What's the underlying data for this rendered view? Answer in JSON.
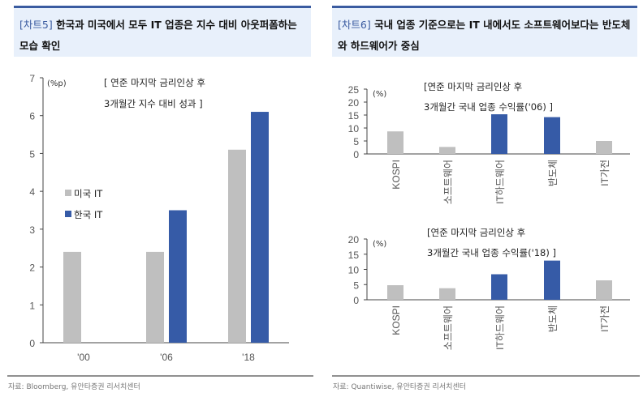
{
  "colors": {
    "gray": "#bfbfbf",
    "blue": "#365ba7",
    "header_bg": "#e8f0fb",
    "header_border": "#3a5ba0"
  },
  "left": {
    "tag": "[차트5]",
    "title": "한국과 미국에서 모두 IT 업종은 지수 대비 아웃퍼폼하는 모습 확인",
    "source": "자료: Bloomberg, 유안타증권 리서치센터"
  },
  "right": {
    "tag": "[차트6]",
    "title": "국내 업종 기준으로는 IT 내에서도 소프트웨어보다는 반도체와 하드웨어가 중심",
    "source": "자료: Quantiwise, 유안타증권 리서치센터"
  },
  "chart_data": [
    {
      "type": "bar",
      "unit": "(%p)",
      "annotation": [
        "[ 연준 마지막 금리인상 후",
        "3개월간 지수 대비 성과 ]"
      ],
      "categories": [
        "'00",
        "'06",
        "'18"
      ],
      "ylim": [
        0,
        7
      ],
      "yticks": [
        "0",
        "1",
        "2",
        "3",
        "4",
        "5",
        "6",
        "7"
      ],
      "legend_position": "left-middle",
      "series": [
        {
          "name": "미국 IT",
          "color": "#bfbfbf",
          "values": [
            2.4,
            2.4,
            5.1
          ]
        },
        {
          "name": "한국 IT",
          "color": "#365ba7",
          "values": [
            null,
            3.5,
            6.1
          ]
        }
      ]
    },
    {
      "type": "bar",
      "unit": "(%)",
      "annotation": [
        "[연준 마지막 금리인상 후",
        "3개월간 국내 업종 수익률('06) ]"
      ],
      "categories": [
        "KOSPI",
        "소프트웨어",
        "IT하드웨어",
        "반도체",
        "IT가전"
      ],
      "ylim": [
        0,
        25
      ],
      "yticks": [
        "0",
        "5",
        "10",
        "15",
        "20",
        "25"
      ],
      "values": [
        8.7,
        2.7,
        15.3,
        14.2,
        5.0
      ],
      "colors": [
        "#bfbfbf",
        "#bfbfbf",
        "#365ba7",
        "#365ba7",
        "#bfbfbf"
      ]
    },
    {
      "type": "bar",
      "unit": "(%)",
      "annotation": [
        "[연준 마지막 금리인상 후",
        "3개월간 국내 업종 수익률('18) ]"
      ],
      "categories": [
        "KOSPI",
        "소프트웨어",
        "IT하드웨어",
        "반도체",
        "IT가전"
      ],
      "ylim": [
        0,
        20
      ],
      "yticks": [
        "0",
        "5",
        "10",
        "15",
        "20"
      ],
      "values": [
        4.8,
        3.8,
        8.4,
        12.9,
        6.4
      ],
      "colors": [
        "#bfbfbf",
        "#bfbfbf",
        "#365ba7",
        "#365ba7",
        "#bfbfbf"
      ]
    }
  ]
}
